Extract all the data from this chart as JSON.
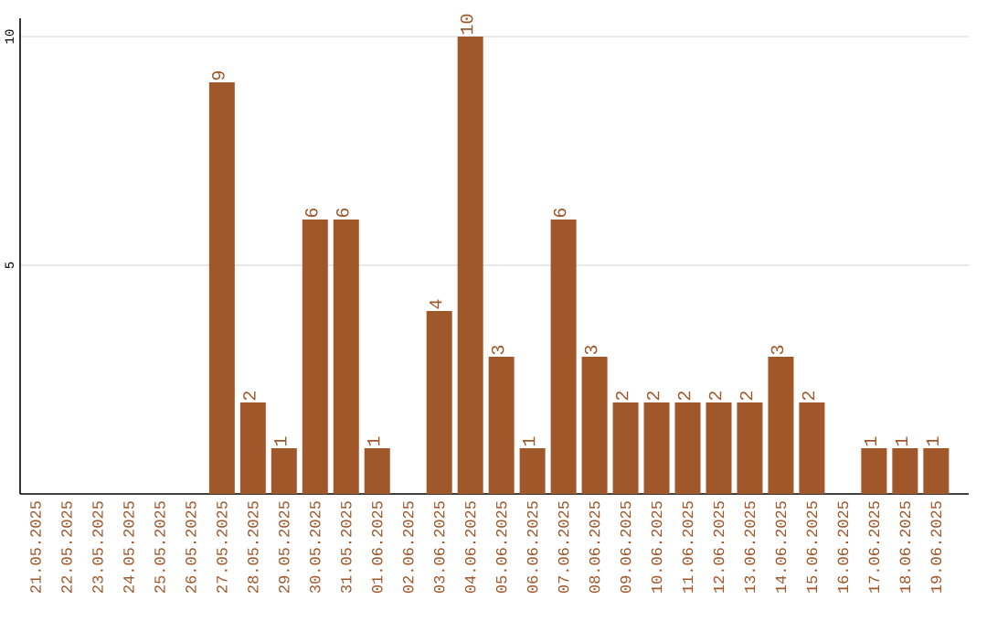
{
  "chart_data": {
    "type": "bar",
    "categories": [
      "21.05.2025",
      "22.05.2025",
      "23.05.2025",
      "24.05.2025",
      "25.05.2025",
      "26.05.2025",
      "27.05.2025",
      "28.05.2025",
      "29.05.2025",
      "30.05.2025",
      "31.05.2025",
      "01.06.2025",
      "02.06.2025",
      "03.06.2025",
      "04.06.2025",
      "05.06.2025",
      "06.06.2025",
      "07.06.2025",
      "08.06.2025",
      "09.06.2025",
      "10.06.2025",
      "11.06.2025",
      "12.06.2025",
      "13.06.2025",
      "14.06.2025",
      "15.06.2025",
      "16.06.2025",
      "17.06.2025",
      "18.06.2025",
      "19.06.2025"
    ],
    "values": [
      0,
      0,
      0,
      0,
      0,
      0,
      9,
      2,
      1,
      6,
      6,
      1,
      0,
      4,
      10,
      3,
      1,
      6,
      3,
      2,
      2,
      2,
      2,
      2,
      3,
      2,
      0,
      1,
      1,
      1
    ],
    "value_labels": [
      null,
      null,
      null,
      null,
      null,
      null,
      "9",
      "2",
      "1",
      "6",
      "6",
      "1",
      null,
      "4",
      "10",
      "3",
      "1",
      "6",
      "3",
      "2",
      "2",
      "2",
      "2",
      "2",
      "3",
      "2",
      null,
      "1",
      "1",
      "1"
    ],
    "color": "#a0572a",
    "ylim": [
      0,
      10.4
    ],
    "yticks": [
      5,
      10
    ],
    "grid": "y"
  }
}
